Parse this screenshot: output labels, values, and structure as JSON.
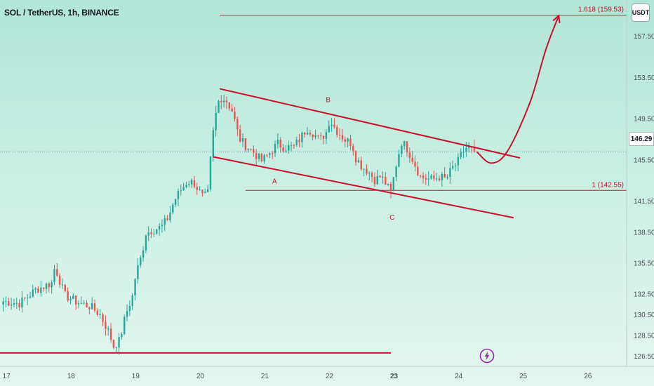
{
  "header": {
    "symbol_title": "SOL / TetherUS, 1h, BINANCE",
    "currency_button": "USDT",
    "last_price": "146.29"
  },
  "colors": {
    "bull": "#26a69a",
    "bear": "#ef5350",
    "annotation": "#c8102e",
    "axis_text": "#4a4f5c",
    "current_price_line": "#8aa0a8"
  },
  "icons": [
    "lightning-icon"
  ],
  "chart_data": {
    "type": "candlestick",
    "title": "SOL / TetherUS, 1h, BINANCE",
    "y_axis": {
      "range": [
        125.5,
        161.0
      ],
      "tick_labels": [
        "157.50",
        "153.50",
        "149.50",
        "145.50",
        "141.50",
        "138.50",
        "135.50",
        "132.50",
        "130.50",
        "128.50",
        "126.50"
      ],
      "position": "right",
      "unit": "USDT"
    },
    "x_axis": {
      "tick_labels": [
        "17",
        "18",
        "19",
        "20",
        "21",
        "22",
        "23",
        "24",
        "25",
        "26"
      ],
      "bold_labels": [
        "23"
      ],
      "range_days": [
        16.9,
        26.6
      ]
    },
    "candle_path": [
      [
        16.95,
        131.8
      ],
      [
        17.2,
        131.6
      ],
      [
        17.45,
        132.9
      ],
      [
        17.7,
        133.6
      ],
      [
        17.75,
        135.2
      ],
      [
        17.9,
        132.4
      ],
      [
        18.1,
        131.7
      ],
      [
        18.3,
        131.3
      ],
      [
        18.45,
        130.5
      ],
      [
        18.6,
        128.6
      ],
      [
        18.65,
        127.4
      ],
      [
        18.75,
        128.0
      ],
      [
        18.85,
        130.6
      ],
      [
        18.95,
        132.3
      ],
      [
        19.0,
        134.4
      ],
      [
        19.1,
        136.4
      ],
      [
        19.15,
        138.4
      ],
      [
        19.25,
        138.7
      ],
      [
        19.4,
        139.0
      ],
      [
        19.5,
        139.9
      ],
      [
        19.6,
        141.6
      ],
      [
        19.7,
        142.6
      ],
      [
        19.8,
        143.4
      ],
      [
        19.9,
        143.3
      ],
      [
        20.05,
        141.8
      ],
      [
        20.12,
        142.3
      ],
      [
        20.18,
        147.3
      ],
      [
        20.25,
        150.3
      ],
      [
        20.3,
        151.6
      ],
      [
        20.4,
        151.3
      ],
      [
        20.5,
        150.2
      ],
      [
        20.6,
        147.6
      ],
      [
        20.7,
        146.9
      ],
      [
        20.8,
        146.4
      ],
      [
        20.95,
        145.4
      ],
      [
        21.05,
        146.0
      ],
      [
        21.2,
        147.1
      ],
      [
        21.3,
        146.7
      ],
      [
        21.45,
        146.8
      ],
      [
        21.55,
        147.6
      ],
      [
        21.65,
        148.6
      ],
      [
        21.75,
        148.1
      ],
      [
        21.85,
        147.4
      ],
      [
        21.95,
        148.2
      ],
      [
        22.0,
        149.4
      ],
      [
        22.12,
        148.3
      ],
      [
        22.25,
        147.4
      ],
      [
        22.35,
        147.1
      ],
      [
        22.4,
        145.8
      ],
      [
        22.5,
        144.9
      ],
      [
        22.6,
        144.4
      ],
      [
        22.7,
        143.6
      ],
      [
        22.8,
        143.9
      ],
      [
        22.9,
        142.9
      ],
      [
        22.95,
        142.3
      ],
      [
        23.0,
        144.0
      ],
      [
        23.05,
        145.6
      ],
      [
        23.12,
        147.3
      ],
      [
        23.2,
        146.6
      ],
      [
        23.3,
        145.4
      ],
      [
        23.4,
        143.9
      ],
      [
        23.5,
        143.7
      ],
      [
        23.6,
        143.6
      ],
      [
        23.7,
        143.9
      ],
      [
        23.8,
        143.6
      ],
      [
        23.9,
        144.7
      ],
      [
        23.98,
        145.2
      ],
      [
        24.1,
        146.7
      ],
      [
        24.2,
        146.5
      ],
      [
        24.28,
        146.29
      ]
    ],
    "annotations": {
      "channel_upper": {
        "from": [
          20.3,
          152.4
        ],
        "to": [
          24.95,
          145.7
        ]
      },
      "channel_lower": {
        "from": [
          20.2,
          145.8
        ],
        "to": [
          24.85,
          139.9
        ]
      },
      "fib_1": {
        "label": "1 (142.55)",
        "price": 142.55,
        "from_day": 20.7
      },
      "fib_1618": {
        "label": "1.618 (159.53)",
        "price": 159.53,
        "from_day": 20.3
      },
      "support_line": {
        "price": 126.8,
        "to_day": 22.95
      },
      "wave_labels": [
        {
          "label": "A",
          "day": 21.15,
          "price": 143.2
        },
        {
          "label": "B",
          "day": 21.98,
          "price": 151.1
        },
        {
          "label": "C",
          "day": 22.97,
          "price": 139.7
        }
      ],
      "projection_path": [
        [
          24.28,
          146.29
        ],
        [
          24.5,
          145.2
        ],
        [
          24.75,
          146.3
        ],
        [
          25.1,
          151.0
        ],
        [
          25.35,
          156.2
        ],
        [
          25.55,
          159.5
        ]
      ]
    }
  }
}
